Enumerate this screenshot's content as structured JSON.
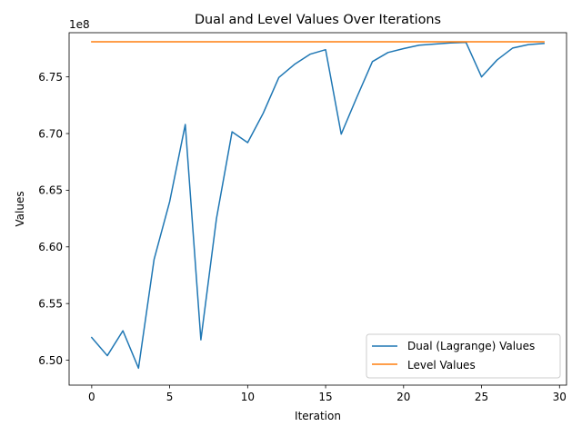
{
  "chart_data": {
    "type": "line",
    "title": "Dual and Level Values Over Iterations",
    "xlabel": "Iteration",
    "ylabel": "Values",
    "y_offset_label": "1e8",
    "xlim": [
      -1.45,
      30.45
    ],
    "ylim": [
      647800000,
      678900000
    ],
    "x_ticks": [
      0,
      5,
      10,
      15,
      20,
      25,
      30
    ],
    "x_tick_labels": [
      "0",
      "5",
      "10",
      "15",
      "20",
      "25",
      "30"
    ],
    "y_ticks": [
      650000000,
      655000000,
      660000000,
      665000000,
      670000000,
      675000000
    ],
    "y_tick_labels": [
      "6.50",
      "6.55",
      "6.60",
      "6.65",
      "6.70",
      "6.75"
    ],
    "grid": false,
    "legend_position": "lower-right",
    "series": [
      {
        "name": "Dual (Lagrange) Values",
        "color": "#1f77b4",
        "x": [
          0,
          1,
          2,
          3,
          4,
          5,
          6,
          7,
          8,
          9,
          10,
          11,
          12,
          13,
          14,
          15,
          16,
          17,
          18,
          19,
          20,
          21,
          22,
          23,
          24,
          25,
          26,
          27,
          28,
          29
        ],
        "values": [
          652000000,
          650400000,
          652600000,
          649300000,
          658900000,
          664000000,
          670800000,
          651800000,
          662500000,
          670150000,
          669200000,
          671800000,
          674950000,
          676100000,
          677000000,
          677400000,
          669950000,
          673200000,
          676350000,
          677150000,
          677500000,
          677800000,
          677900000,
          678000000,
          678050000,
          675000000,
          676500000,
          677550000,
          677850000,
          677950000
        ]
      },
      {
        "name": "Level Values",
        "color": "#ff7f0e",
        "x": [
          0,
          29
        ],
        "values": [
          678100000,
          678100000
        ]
      }
    ]
  }
}
